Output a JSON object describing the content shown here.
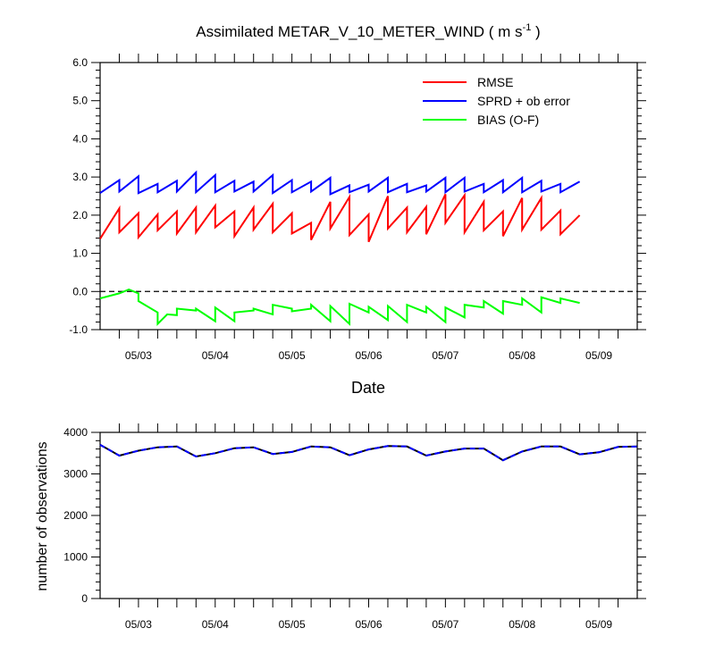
{
  "chart_data": [
    {
      "type": "line",
      "title": "Assimilated METAR_V_10_METER_WIND ( m s",
      "title_sup": "-1",
      "title_end": " )",
      "xlabel": "Date",
      "ylabel": "",
      "ylim": [
        -1.0,
        6.0
      ],
      "yticks": [
        "-1.0",
        "0.0",
        "1.0",
        "2.0",
        "3.0",
        "4.0",
        "5.0",
        "6.0"
      ],
      "xtick_labels": [
        "05/03",
        "05/04",
        "05/05",
        "05/06",
        "05/07",
        "05/08",
        "05/09"
      ],
      "xlim_cycles": [
        0,
        28
      ],
      "reference_line": {
        "y": 0.0,
        "style": "dashed",
        "color": "#000000"
      },
      "legend_position": "top-right",
      "series": [
        {
          "name": "RMSE",
          "color": "#ff0000",
          "points": [
            [
              0,
              1.38
            ],
            [
              1,
              2.18
            ],
            [
              1,
              1.55
            ],
            [
              2,
              2.05
            ],
            [
              2,
              1.42
            ],
            [
              3,
              2.02
            ],
            [
              3,
              1.6
            ],
            [
              4,
              2.1
            ],
            [
              4,
              1.52
            ],
            [
              5,
              2.2
            ],
            [
              5,
              1.55
            ],
            [
              6,
              2.25
            ],
            [
              6,
              1.68
            ],
            [
              7,
              2.1
            ],
            [
              7,
              1.45
            ],
            [
              8,
              2.2
            ],
            [
              8,
              1.62
            ],
            [
              9,
              2.3
            ],
            [
              9,
              1.55
            ],
            [
              10,
              2.05
            ],
            [
              10,
              1.52
            ],
            [
              11,
              1.8
            ],
            [
              11,
              1.35
            ],
            [
              12,
              2.35
            ],
            [
              12,
              1.65
            ],
            [
              13,
              2.48
            ],
            [
              13,
              1.48
            ],
            [
              14,
              2.02
            ],
            [
              14,
              1.3
            ],
            [
              15,
              2.5
            ],
            [
              15,
              1.65
            ],
            [
              16,
              2.2
            ],
            [
              16,
              1.55
            ],
            [
              17,
              2.22
            ],
            [
              17,
              1.5
            ],
            [
              18,
              2.55
            ],
            [
              18,
              1.8
            ],
            [
              19,
              2.52
            ],
            [
              19,
              1.55
            ],
            [
              20,
              2.35
            ],
            [
              20,
              1.6
            ],
            [
              21,
              2.1
            ],
            [
              21,
              1.45
            ],
            [
              22,
              2.45
            ],
            [
              22,
              1.62
            ],
            [
              23,
              2.45
            ],
            [
              23,
              1.62
            ],
            [
              24,
              2.12
            ],
            [
              24,
              1.5
            ],
            [
              25,
              2.0
            ]
          ]
        },
        {
          "name": "SPRD + ob error",
          "color": "#0000ff",
          "points": [
            [
              0,
              2.58
            ],
            [
              1,
              2.92
            ],
            [
              1,
              2.62
            ],
            [
              2,
              3.02
            ],
            [
              2,
              2.58
            ],
            [
              3,
              2.82
            ],
            [
              3,
              2.6
            ],
            [
              4,
              2.9
            ],
            [
              4,
              2.62
            ],
            [
              5,
              3.12
            ],
            [
              5,
              2.6
            ],
            [
              6,
              3.05
            ],
            [
              6,
              2.6
            ],
            [
              7,
              2.9
            ],
            [
              7,
              2.62
            ],
            [
              8,
              2.88
            ],
            [
              8,
              2.62
            ],
            [
              9,
              3.05
            ],
            [
              9,
              2.58
            ],
            [
              10,
              2.92
            ],
            [
              10,
              2.6
            ],
            [
              11,
              2.88
            ],
            [
              11,
              2.62
            ],
            [
              12,
              2.98
            ],
            [
              12,
              2.55
            ],
            [
              13,
              2.78
            ],
            [
              13,
              2.6
            ],
            [
              14,
              2.8
            ],
            [
              14,
              2.62
            ],
            [
              15,
              2.98
            ],
            [
              15,
              2.6
            ],
            [
              16,
              2.82
            ],
            [
              16,
              2.6
            ],
            [
              17,
              2.78
            ],
            [
              17,
              2.62
            ],
            [
              18,
              2.98
            ],
            [
              18,
              2.6
            ],
            [
              19,
              2.98
            ],
            [
              19,
              2.62
            ],
            [
              20,
              2.82
            ],
            [
              20,
              2.6
            ],
            [
              21,
              2.92
            ],
            [
              21,
              2.6
            ],
            [
              22,
              2.98
            ],
            [
              22,
              2.6
            ],
            [
              23,
              2.9
            ],
            [
              23,
              2.62
            ],
            [
              24,
              2.82
            ],
            [
              24,
              2.6
            ],
            [
              25,
              2.88
            ]
          ]
        },
        {
          "name": "BIAS (O-F)",
          "color": "#00ff00",
          "points": [
            [
              0,
              -0.18
            ],
            [
              1,
              -0.05
            ],
            [
              1.5,
              0.05
            ],
            [
              2,
              -0.05
            ],
            [
              2,
              -0.25
            ],
            [
              3,
              -0.55
            ],
            [
              3,
              -0.85
            ],
            [
              3.5,
              -0.6
            ],
            [
              4,
              -0.62
            ],
            [
              4,
              -0.45
            ],
            [
              5,
              -0.5
            ],
            [
              5,
              -0.45
            ],
            [
              6,
              -0.78
            ],
            [
              6,
              -0.42
            ],
            [
              7,
              -0.78
            ],
            [
              7,
              -0.55
            ],
            [
              8,
              -0.5
            ],
            [
              8,
              -0.45
            ],
            [
              9,
              -0.6
            ],
            [
              9,
              -0.35
            ],
            [
              10,
              -0.45
            ],
            [
              10,
              -0.52
            ],
            [
              11,
              -0.45
            ],
            [
              11,
              -0.35
            ],
            [
              12,
              -0.78
            ],
            [
              12,
              -0.38
            ],
            [
              13,
              -0.85
            ],
            [
              13,
              -0.32
            ],
            [
              14,
              -0.55
            ],
            [
              14,
              -0.4
            ],
            [
              15,
              -0.75
            ],
            [
              15,
              -0.38
            ],
            [
              16,
              -0.8
            ],
            [
              16,
              -0.35
            ],
            [
              17,
              -0.55
            ],
            [
              17,
              -0.4
            ],
            [
              18,
              -0.8
            ],
            [
              18,
              -0.42
            ],
            [
              19,
              -0.68
            ],
            [
              19,
              -0.35
            ],
            [
              20,
              -0.42
            ],
            [
              20,
              -0.25
            ],
            [
              21,
              -0.58
            ],
            [
              21,
              -0.25
            ],
            [
              22,
              -0.35
            ],
            [
              22,
              -0.18
            ],
            [
              23,
              -0.55
            ],
            [
              23,
              -0.15
            ],
            [
              24,
              -0.3
            ],
            [
              24,
              -0.18
            ],
            [
              25,
              -0.3
            ]
          ]
        }
      ]
    },
    {
      "type": "line",
      "xlabel": "",
      "ylabel": "number of observations",
      "ylim": [
        0,
        4000
      ],
      "yticks": [
        "0",
        "1000",
        "2000",
        "3000",
        "4000"
      ],
      "xtick_labels": [
        "05/03",
        "05/04",
        "05/05",
        "05/06",
        "05/07",
        "05/08",
        "05/09"
      ],
      "xlim_cycles": [
        0,
        28
      ],
      "series": [
        {
          "name": "",
          "color": "#000000",
          "style": "solid",
          "points": [
            [
              0,
              3700
            ],
            [
              1,
              3440
            ],
            [
              2,
              3560
            ],
            [
              3,
              3640
            ],
            [
              4,
              3660
            ],
            [
              5,
              3420
            ],
            [
              6,
              3500
            ],
            [
              7,
              3620
            ],
            [
              8,
              3640
            ],
            [
              9,
              3480
            ],
            [
              10,
              3530
            ],
            [
              11,
              3660
            ],
            [
              12,
              3640
            ],
            [
              13,
              3450
            ],
            [
              14,
              3590
            ],
            [
              15,
              3670
            ],
            [
              16,
              3660
            ],
            [
              17,
              3440
            ],
            [
              18,
              3540
            ],
            [
              19,
              3610
            ],
            [
              20,
              3610
            ],
            [
              21,
              3330
            ],
            [
              22,
              3540
            ],
            [
              23,
              3660
            ],
            [
              24,
              3660
            ],
            [
              25,
              3470
            ],
            [
              26,
              3520
            ],
            [
              27,
              3650
            ],
            [
              28,
              3660
            ]
          ]
        },
        {
          "name": "",
          "color": "#0000ff",
          "style": "dashed",
          "points": [
            [
              0,
              3700
            ],
            [
              1,
              3440
            ],
            [
              2,
              3560
            ],
            [
              3,
              3640
            ],
            [
              4,
              3660
            ],
            [
              5,
              3420
            ],
            [
              6,
              3500
            ],
            [
              7,
              3620
            ],
            [
              8,
              3640
            ],
            [
              9,
              3480
            ],
            [
              10,
              3530
            ],
            [
              11,
              3660
            ],
            [
              12,
              3640
            ],
            [
              13,
              3450
            ],
            [
              14,
              3590
            ],
            [
              15,
              3670
            ],
            [
              16,
              3660
            ],
            [
              17,
              3440
            ],
            [
              18,
              3540
            ],
            [
              19,
              3610
            ],
            [
              20,
              3610
            ],
            [
              21,
              3330
            ],
            [
              22,
              3540
            ],
            [
              23,
              3660
            ],
            [
              24,
              3660
            ],
            [
              25,
              3470
            ],
            [
              26,
              3520
            ],
            [
              27,
              3650
            ],
            [
              28,
              3660
            ]
          ]
        }
      ]
    }
  ]
}
